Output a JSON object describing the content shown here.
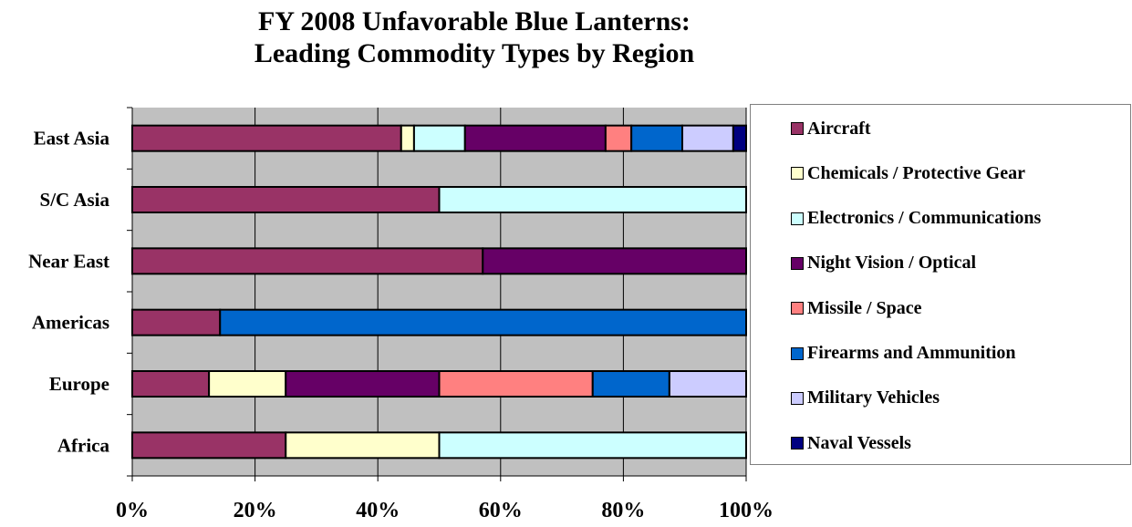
{
  "chart_data": {
    "type": "bar",
    "orientation": "horizontal",
    "stacked": "percent",
    "title": [
      "FY 2008 Unfavorable Blue Lanterns:",
      "Leading Commodity Types by Region"
    ],
    "categories": [
      "East Asia",
      "S/C Asia",
      "Near East",
      "Americas",
      "Europe",
      "Africa"
    ],
    "xlim": [
      0,
      100
    ],
    "xticks": [
      "0%",
      "20%",
      "40%",
      "60%",
      "80%",
      "100%"
    ],
    "grid": true,
    "legend_position": "right",
    "series": [
      {
        "name": "Aircraft",
        "color": "#993366",
        "values": [
          43.8,
          50,
          57.1,
          14.3,
          12.5,
          25
        ]
      },
      {
        "name": "Chemicals / Protective Gear",
        "color": "#ffffcc",
        "values": [
          2.1,
          0,
          0,
          0,
          12.5,
          25
        ]
      },
      {
        "name": "Electronics / Communications",
        "color": "#ccffff",
        "values": [
          8.3,
          50,
          0,
          0,
          0,
          50
        ]
      },
      {
        "name": "Night Vision / Optical",
        "color": "#660066",
        "values": [
          22.9,
          0,
          42.9,
          0,
          25,
          0
        ]
      },
      {
        "name": "Missile / Space",
        "color": "#ff8080",
        "values": [
          4.2,
          0,
          0,
          0,
          25,
          0
        ]
      },
      {
        "name": "Firearms and Ammunition",
        "color": "#0066cc",
        "values": [
          8.3,
          0,
          0,
          85.7,
          12.5,
          0
        ]
      },
      {
        "name": "Military Vehicles",
        "color": "#ccccff",
        "values": [
          8.3,
          0,
          0,
          0,
          12.5,
          0
        ]
      },
      {
        "name": "Naval Vessels",
        "color": "#000080",
        "values": [
          2.1,
          0,
          0,
          0,
          0,
          0
        ]
      }
    ]
  },
  "style": {
    "plot_background": "#c0c0c0",
    "gridline": "#000000",
    "bar_border": "#000000"
  }
}
